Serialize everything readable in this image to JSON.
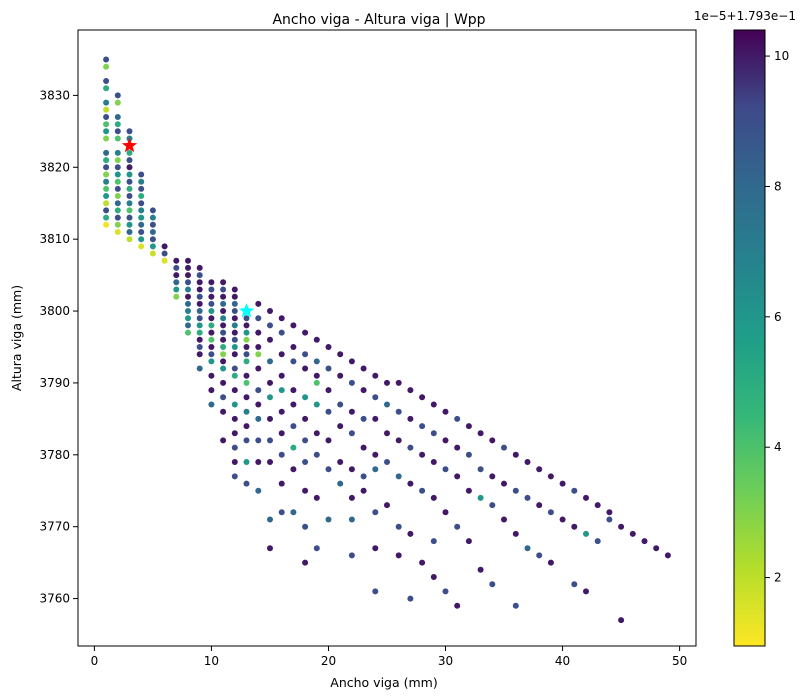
{
  "chart_data": {
    "type": "scatter",
    "title": "Ancho viga - Altura viga | Wpp",
    "xlabel": "Ancho viga (mm)",
    "ylabel": "Altura viga (mm)",
    "xlim": [
      -1.4,
      51.4
    ],
    "ylim": [
      3753.4,
      3839.1
    ],
    "x_ticks": [
      0,
      10,
      20,
      30,
      40,
      50
    ],
    "y_ticks": [
      3760,
      3770,
      3780,
      3790,
      3800,
      3810,
      3820,
      3830
    ],
    "colormap": "viridis_r",
    "colorbar": {
      "ticks": [
        2,
        4,
        6,
        8,
        10
      ],
      "offset_label": "1e−5+1.793e−1",
      "range": [
        0.95,
        10.4
      ]
    },
    "markers": [
      {
        "name": "red-star",
        "x": 3,
        "y": 3823,
        "color": "#ff0000"
      },
      {
        "name": "cyan-star",
        "x": 13,
        "y": 3800,
        "color": "#00ffff"
      }
    ],
    "points": [
      [
        1,
        3835,
        9
      ],
      [
        1,
        3834,
        3
      ],
      [
        1,
        3832,
        9
      ],
      [
        1,
        3831,
        5
      ],
      [
        1,
        3829,
        7
      ],
      [
        1,
        3828,
        2
      ],
      [
        1,
        3827,
        9
      ],
      [
        1,
        3826,
        4
      ],
      [
        1,
        3825,
        6
      ],
      [
        1,
        3824,
        3
      ],
      [
        1,
        3822,
        8
      ],
      [
        1,
        3821,
        5
      ],
      [
        1,
        3820,
        9
      ],
      [
        1,
        3819,
        3
      ],
      [
        1,
        3818,
        7
      ],
      [
        1,
        3817,
        4
      ],
      [
        1,
        3816,
        6
      ],
      [
        1,
        3815,
        2
      ],
      [
        1,
        3814,
        9
      ],
      [
        1,
        3813,
        5
      ],
      [
        1,
        3812,
        1.2
      ],
      [
        2,
        3830,
        9
      ],
      [
        2,
        3829,
        3
      ],
      [
        2,
        3827,
        8
      ],
      [
        2,
        3826,
        5
      ],
      [
        2,
        3825,
        9
      ],
      [
        2,
        3824,
        4
      ],
      [
        2,
        3822,
        7
      ],
      [
        2,
        3821,
        3
      ],
      [
        2,
        3820,
        9
      ],
      [
        2,
        3819,
        6
      ],
      [
        2,
        3818,
        4
      ],
      [
        2,
        3817,
        9
      ],
      [
        2,
        3816,
        3
      ],
      [
        2,
        3815,
        8
      ],
      [
        2,
        3814,
        5
      ],
      [
        2,
        3813,
        9
      ],
      [
        2,
        3812,
        3
      ],
      [
        2,
        3811,
        1.5
      ],
      [
        3,
        3825,
        9
      ],
      [
        3,
        3824,
        7
      ],
      [
        3,
        3822,
        5
      ],
      [
        3,
        3821,
        9
      ],
      [
        3,
        3820,
        10
      ],
      [
        3,
        3819,
        6
      ],
      [
        3,
        3818,
        9
      ],
      [
        3,
        3817,
        5
      ],
      [
        3,
        3816,
        9
      ],
      [
        3,
        3815,
        7
      ],
      [
        3,
        3814,
        4
      ],
      [
        3,
        3813,
        9
      ],
      [
        3,
        3812,
        6
      ],
      [
        3,
        3811,
        8
      ],
      [
        3,
        3810,
        2
      ],
      [
        4,
        3819,
        9
      ],
      [
        4,
        3818,
        7
      ],
      [
        4,
        3817,
        9
      ],
      [
        4,
        3816,
        5
      ],
      [
        4,
        3815,
        9
      ],
      [
        4,
        3814,
        7
      ],
      [
        4,
        3813,
        6
      ],
      [
        4,
        3812,
        8
      ],
      [
        4,
        3811,
        9
      ],
      [
        4,
        3810,
        6
      ],
      [
        4,
        3809,
        1.5
      ],
      [
        5,
        3814,
        9
      ],
      [
        5,
        3813,
        7
      ],
      [
        5,
        3812,
        9
      ],
      [
        5,
        3811,
        8
      ],
      [
        5,
        3810,
        9
      ],
      [
        5,
        3809,
        6
      ],
      [
        5,
        3808,
        1.8
      ],
      [
        6,
        3809,
        10
      ],
      [
        6,
        3808,
        9
      ],
      [
        6,
        3807,
        1.5
      ],
      [
        7,
        3807,
        10
      ],
      [
        7,
        3806,
        9
      ],
      [
        7,
        3805,
        10
      ],
      [
        7,
        3804,
        8
      ],
      [
        7,
        3803,
        6
      ],
      [
        7,
        3802,
        3
      ],
      [
        8,
        3807,
        10
      ],
      [
        8,
        3806,
        10
      ],
      [
        8,
        3805,
        10
      ],
      [
        8,
        3804,
        9
      ],
      [
        8,
        3803,
        7
      ],
      [
        8,
        3802,
        10
      ],
      [
        8,
        3801,
        8
      ],
      [
        8,
        3800,
        7
      ],
      [
        8,
        3799,
        6
      ],
      [
        8,
        3798,
        8
      ],
      [
        8,
        3797,
        4
      ],
      [
        9,
        3806,
        10
      ],
      [
        9,
        3805,
        9
      ],
      [
        9,
        3804,
        10
      ],
      [
        9,
        3803,
        10
      ],
      [
        9,
        3802,
        9
      ],
      [
        9,
        3801,
        10
      ],
      [
        9,
        3800,
        8
      ],
      [
        9,
        3799,
        9
      ],
      [
        9,
        3798,
        6
      ],
      [
        9,
        3797,
        5
      ],
      [
        9,
        3796,
        10
      ],
      [
        9,
        3795,
        9
      ],
      [
        9,
        3794,
        10
      ],
      [
        9,
        3792,
        8
      ],
      [
        10,
        3804,
        10
      ],
      [
        10,
        3803,
        9
      ],
      [
        10,
        3802,
        10
      ],
      [
        10,
        3801,
        9
      ],
      [
        10,
        3800,
        6
      ],
      [
        10,
        3799,
        10
      ],
      [
        10,
        3798,
        5
      ],
      [
        10,
        3797,
        10
      ],
      [
        10,
        3796,
        4
      ],
      [
        10,
        3795,
        10
      ],
      [
        10,
        3794,
        9
      ],
      [
        10,
        3793,
        6
      ],
      [
        10,
        3791,
        10
      ],
      [
        10,
        3789,
        10
      ],
      [
        10,
        3787,
        8
      ],
      [
        11,
        3804,
        10
      ],
      [
        11,
        3803,
        9
      ],
      [
        11,
        3802,
        10
      ],
      [
        11,
        3801,
        8
      ],
      [
        11,
        3800,
        10
      ],
      [
        11,
        3799,
        7
      ],
      [
        11,
        3798,
        10
      ],
      [
        11,
        3797,
        9
      ],
      [
        11,
        3796,
        10
      ],
      [
        11,
        3795,
        5
      ],
      [
        11,
        3794,
        3
      ],
      [
        11,
        3793,
        10
      ],
      [
        11,
        3792,
        6
      ],
      [
        11,
        3790,
        10
      ],
      [
        11,
        3788,
        9
      ],
      [
        11,
        3786,
        10
      ],
      [
        11,
        3782,
        10
      ],
      [
        12,
        3803,
        10
      ],
      [
        12,
        3802,
        10
      ],
      [
        12,
        3801,
        8
      ],
      [
        12,
        3800,
        9
      ],
      [
        12,
        3799,
        10
      ],
      [
        12,
        3798,
        7
      ],
      [
        12,
        3797,
        10
      ],
      [
        12,
        3796,
        9
      ],
      [
        12,
        3795,
        6
      ],
      [
        12,
        3794,
        10
      ],
      [
        12,
        3792,
        9
      ],
      [
        12,
        3791,
        5
      ],
      [
        12,
        3789,
        10
      ],
      [
        12,
        3787,
        6
      ],
      [
        12,
        3785,
        10
      ],
      [
        12,
        3783,
        10
      ],
      [
        12,
        3781,
        9
      ],
      [
        12,
        3779,
        10
      ],
      [
        12,
        3777,
        9
      ],
      [
        13,
        3800,
        7
      ],
      [
        13,
        3799,
        9
      ],
      [
        13,
        3798,
        10
      ],
      [
        13,
        3797,
        6
      ],
      [
        13,
        3796,
        3
      ],
      [
        13,
        3795,
        10
      ],
      [
        13,
        3794,
        9
      ],
      [
        13,
        3793,
        5
      ],
      [
        13,
        3791,
        10
      ],
      [
        13,
        3790,
        4
      ],
      [
        13,
        3788,
        10
      ],
      [
        13,
        3786,
        7
      ],
      [
        13,
        3784,
        10
      ],
      [
        13,
        3782,
        9
      ],
      [
        13,
        3779,
        6
      ],
      [
        13,
        3776,
        9
      ],
      [
        14,
        3801,
        10
      ],
      [
        14,
        3799,
        9
      ],
      [
        14,
        3797,
        10
      ],
      [
        14,
        3795,
        10
      ],
      [
        14,
        3794,
        3
      ],
      [
        14,
        3792,
        10
      ],
      [
        14,
        3789,
        9
      ],
      [
        14,
        3787,
        10
      ],
      [
        14,
        3785,
        8
      ],
      [
        14,
        3782,
        9
      ],
      [
        14,
        3779,
        10
      ],
      [
        14,
        3775,
        8
      ],
      [
        15,
        3800,
        10
      ],
      [
        15,
        3798,
        9
      ],
      [
        15,
        3796,
        10
      ],
      [
        15,
        3793,
        8
      ],
      [
        15,
        3790,
        10
      ],
      [
        15,
        3788,
        6
      ],
      [
        15,
        3785,
        10
      ],
      [
        15,
        3782,
        9
      ],
      [
        15,
        3779,
        10
      ],
      [
        15,
        3771,
        8
      ],
      [
        15,
        3767,
        10
      ],
      [
        16,
        3799,
        10
      ],
      [
        16,
        3797,
        9
      ],
      [
        16,
        3794,
        10
      ],
      [
        16,
        3791,
        10
      ],
      [
        16,
        3789,
        6
      ],
      [
        16,
        3786,
        10
      ],
      [
        16,
        3783,
        10
      ],
      [
        16,
        3780,
        9
      ],
      [
        16,
        3776,
        10
      ],
      [
        16,
        3772,
        9
      ],
      [
        17,
        3798,
        10
      ],
      [
        17,
        3795,
        10
      ],
      [
        17,
        3793,
        9
      ],
      [
        17,
        3789,
        10
      ],
      [
        17,
        3787,
        10
      ],
      [
        17,
        3784,
        9
      ],
      [
        17,
        3781,
        5
      ],
      [
        17,
        3778,
        10
      ],
      [
        17,
        3772,
        8
      ],
      [
        18,
        3797,
        10
      ],
      [
        18,
        3794,
        9
      ],
      [
        18,
        3792,
        10
      ],
      [
        18,
        3788,
        6
      ],
      [
        18,
        3785,
        10
      ],
      [
        18,
        3782,
        9
      ],
      [
        18,
        3779,
        9
      ],
      [
        18,
        3775,
        10
      ],
      [
        18,
        3770,
        9
      ],
      [
        18,
        3765,
        10
      ],
      [
        19,
        3796,
        10
      ],
      [
        19,
        3793,
        8
      ],
      [
        19,
        3791,
        10
      ],
      [
        19,
        3790,
        4
      ],
      [
        19,
        3787,
        6
      ],
      [
        19,
        3783,
        10
      ],
      [
        19,
        3780,
        9
      ],
      [
        19,
        3774,
        10
      ],
      [
        19,
        3767,
        9
      ],
      [
        20,
        3795,
        10
      ],
      [
        20,
        3792,
        9
      ],
      [
        20,
        3789,
        10
      ],
      [
        20,
        3786,
        9
      ],
      [
        20,
        3782,
        10
      ],
      [
        20,
        3778,
        9
      ],
      [
        20,
        3771,
        8
      ],
      [
        21,
        3794,
        10
      ],
      [
        21,
        3791,
        10
      ],
      [
        21,
        3787,
        9
      ],
      [
        21,
        3784,
        10
      ],
      [
        21,
        3779,
        10
      ],
      [
        21,
        3776,
        8
      ],
      [
        22,
        3793,
        10
      ],
      [
        22,
        3790,
        9
      ],
      [
        22,
        3786,
        10
      ],
      [
        22,
        3783,
        9
      ],
      [
        22,
        3778,
        10
      ],
      [
        22,
        3774,
        10
      ],
      [
        22,
        3771,
        8
      ],
      [
        22,
        3766,
        9
      ],
      [
        23,
        3792,
        10
      ],
      [
        23,
        3789,
        10
      ],
      [
        23,
        3785,
        9
      ],
      [
        23,
        3781,
        10
      ],
      [
        23,
        3777,
        9
      ],
      [
        23,
        3775,
        10
      ],
      [
        24,
        3791,
        10
      ],
      [
        24,
        3788,
        9
      ],
      [
        24,
        3785,
        10
      ],
      [
        24,
        3780,
        10
      ],
      [
        24,
        3778,
        8
      ],
      [
        24,
        3772,
        9
      ],
      [
        24,
        3767,
        10
      ],
      [
        24,
        3761,
        9
      ],
      [
        25,
        3790,
        10
      ],
      [
        25,
        3787,
        8
      ],
      [
        25,
        3783,
        10
      ],
      [
        25,
        3779,
        9
      ],
      [
        25,
        3773,
        10
      ],
      [
        26,
        3790,
        10
      ],
      [
        26,
        3786,
        9
      ],
      [
        26,
        3782,
        10
      ],
      [
        26,
        3777,
        8
      ],
      [
        26,
        3770,
        9
      ],
      [
        26,
        3766,
        10
      ],
      [
        27,
        3789,
        10
      ],
      [
        27,
        3785,
        10
      ],
      [
        27,
        3781,
        9
      ],
      [
        27,
        3776,
        10
      ],
      [
        27,
        3769,
        10
      ],
      [
        27,
        3760,
        9
      ],
      [
        28,
        3788,
        10
      ],
      [
        28,
        3784,
        9
      ],
      [
        28,
        3780,
        10
      ],
      [
        28,
        3775,
        9
      ],
      [
        28,
        3765,
        10
      ],
      [
        29,
        3787,
        10
      ],
      [
        29,
        3783,
        9
      ],
      [
        29,
        3779,
        10
      ],
      [
        29,
        3774,
        10
      ],
      [
        29,
        3768,
        9
      ],
      [
        29,
        3763,
        10
      ],
      [
        30,
        3786,
        10
      ],
      [
        30,
        3782,
        10
      ],
      [
        30,
        3778,
        9
      ],
      [
        30,
        3772,
        10
      ],
      [
        30,
        3761,
        9
      ],
      [
        31,
        3785,
        9
      ],
      [
        31,
        3781,
        10
      ],
      [
        31,
        3777,
        10
      ],
      [
        31,
        3770,
        9
      ],
      [
        31,
        3759,
        10
      ],
      [
        32,
        3784,
        10
      ],
      [
        32,
        3780,
        9
      ],
      [
        32,
        3775,
        10
      ],
      [
        32,
        3768,
        10
      ],
      [
        33,
        3783,
        10
      ],
      [
        33,
        3778,
        9
      ],
      [
        33,
        3774,
        6
      ],
      [
        33,
        3764,
        10
      ],
      [
        34,
        3782,
        10
      ],
      [
        34,
        3777,
        10
      ],
      [
        34,
        3773,
        9
      ],
      [
        34,
        3762,
        9
      ],
      [
        35,
        3781,
        9
      ],
      [
        35,
        3776,
        10
      ],
      [
        35,
        3771,
        10
      ],
      [
        36,
        3780,
        10
      ],
      [
        36,
        3775,
        9
      ],
      [
        36,
        3769,
        10
      ],
      [
        36,
        3759,
        9
      ],
      [
        37,
        3779,
        10
      ],
      [
        37,
        3774,
        9
      ],
      [
        37,
        3767,
        8
      ],
      [
        38,
        3778,
        10
      ],
      [
        38,
        3773,
        10
      ],
      [
        38,
        3766,
        9
      ],
      [
        39,
        3777,
        10
      ],
      [
        39,
        3772,
        9
      ],
      [
        39,
        3765,
        10
      ],
      [
        40,
        3776,
        10
      ],
      [
        40,
        3771,
        10
      ],
      [
        41,
        3775,
        9
      ],
      [
        41,
        3770,
        10
      ],
      [
        41,
        3762,
        9
      ],
      [
        42,
        3774,
        10
      ],
      [
        42,
        3769,
        6
      ],
      [
        42,
        3761,
        10
      ],
      [
        43,
        3773,
        10
      ],
      [
        43,
        3768,
        9
      ],
      [
        44,
        3772,
        10
      ],
      [
        44,
        3771,
        9
      ],
      [
        45,
        3770,
        10
      ],
      [
        45,
        3757,
        10
      ],
      [
        46,
        3769,
        10
      ],
      [
        47,
        3768,
        10
      ],
      [
        48,
        3767,
        10
      ],
      [
        49,
        3766,
        10
      ]
    ]
  }
}
